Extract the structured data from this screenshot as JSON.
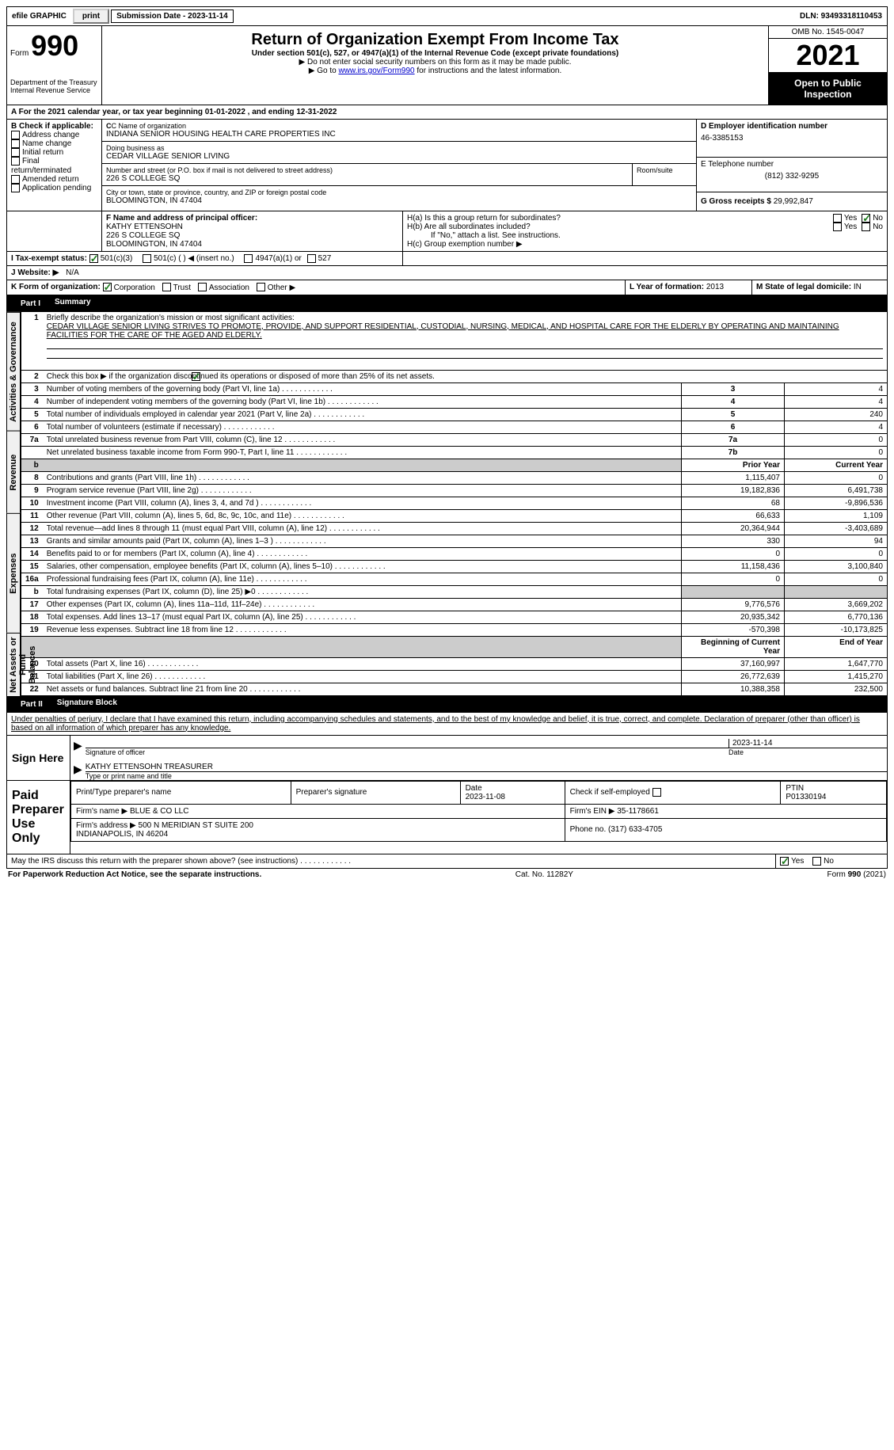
{
  "top": {
    "efile": "efile GRAPHIC",
    "print": "print",
    "submission": "Submission Date - 2023-11-14",
    "dln": "DLN: 93493318110453"
  },
  "header": {
    "form": "Form",
    "num": "990",
    "dept": "Department of the Treasury\nInternal Revenue Service",
    "title": "Return of Organization Exempt From Income Tax",
    "sub1": "Under section 501(c), 527, or 4947(a)(1) of the Internal Revenue Code (except private foundations)",
    "sub2": "▶ Do not enter social security numbers on this form as it may be made public.",
    "sub3": "▶ Go to ",
    "link": "www.irs.gov/Form990",
    "sub3b": " for instructions and the latest information.",
    "omb": "OMB No. 1545-0047",
    "year": "2021",
    "public": "Open to Public Inspection"
  },
  "a": {
    "line": "A For the 2021 calendar year, or tax year beginning 01-01-2022     , and ending 12-31-2022"
  },
  "b": {
    "label": "B Check if applicable:",
    "opts": [
      "Address change",
      "Name change",
      "Initial return",
      "Final return/terminated",
      "Amended return",
      "Application pending"
    ]
  },
  "c": {
    "label": "C Name of organization",
    "name": "INDIANA SENIOR HOUSING HEALTH CARE PROPERTIES INC",
    "dba_label": "Doing business as",
    "dba": "CEDAR VILLAGE SENIOR LIVING",
    "addr_label": "Number and street (or P.O. box if mail is not delivered to street address)",
    "room": "Room/suite",
    "addr": "226 S COLLEGE SQ",
    "city_label": "City or town, state or province, country, and ZIP or foreign postal code",
    "city": "BLOOMINGTON, IN  47404"
  },
  "d": {
    "label": "D Employer identification number",
    "val": "46-3385153"
  },
  "e": {
    "label": "E Telephone number",
    "val": "(812) 332-9295"
  },
  "g": {
    "label": "G Gross receipts $",
    "val": "29,992,847"
  },
  "f": {
    "label": "F Name and address of principal officer:",
    "name": "KATHY ETTENSOHN",
    "addr1": "226 S COLLEGE SQ",
    "addr2": "BLOOMINGTON, IN  47404"
  },
  "h": {
    "a": "H(a)  Is this a group return for subordinates?",
    "b": "H(b)  Are all subordinates included?",
    "note": "If \"No,\" attach a list. See instructions.",
    "c": "H(c)  Group exemption number ▶",
    "yes": "Yes",
    "no": "No"
  },
  "i": {
    "label": "I    Tax-exempt status:",
    "o1": "501(c)(3)",
    "o2": "501(c) (   ) ◀ (insert no.)",
    "o3": "4947(a)(1) or",
    "o4": "527"
  },
  "j": {
    "label": "J    Website: ▶",
    "val": "N/A"
  },
  "k": {
    "label": "K Form of organization:",
    "o1": "Corporation",
    "o2": "Trust",
    "o3": "Association",
    "o4": "Other ▶"
  },
  "l": {
    "label": "L Year of formation:",
    "val": "2013"
  },
  "m": {
    "label": "M State of legal domicile:",
    "val": "IN"
  },
  "part1": {
    "label": "Part I",
    "title": "Summary"
  },
  "summary": {
    "sections": {
      "s1": "Activities & Governance",
      "s2": "Revenue",
      "s3": "Expenses",
      "s4": "Net Assets or Fund Balances"
    },
    "line1": "Briefly describe the organization's mission or most significant activities:",
    "mission": "CEDAR VILLAGE SENIOR LIVING STRIVES TO PROMOTE, PROVIDE, AND SUPPORT RESIDENTIAL, CUSTODIAL, NURSING, MEDICAL, AND HOSPITAL CARE FOR THE ELDERLY BY OPERATING AND MAINTAINING FACILITIES FOR THE CARE OF THE AGED AND ELDERLY.",
    "line2": "Check this box ▶      if the organization discontinued its operations or disposed of more than 25% of its net assets.",
    "lines_top": [
      {
        "n": "3",
        "t": "Number of voting members of the governing body (Part VI, line 1a)",
        "box": "3",
        "v": "4"
      },
      {
        "n": "4",
        "t": "Number of independent voting members of the governing body (Part VI, line 1b)",
        "box": "4",
        "v": "4"
      },
      {
        "n": "5",
        "t": "Total number of individuals employed in calendar year 2021 (Part V, line 2a)",
        "box": "5",
        "v": "240"
      },
      {
        "n": "6",
        "t": "Total number of volunteers (estimate if necessary)",
        "box": "6",
        "v": "4"
      },
      {
        "n": "7a",
        "t": "Total unrelated business revenue from Part VIII, column (C), line 12",
        "box": "7a",
        "v": "0"
      },
      {
        "n": "",
        "t": "Net unrelated business taxable income from Form 990-T, Part I, line 11",
        "box": "7b",
        "v": "0"
      }
    ],
    "col_prior": "Prior Year",
    "col_current": "Current Year",
    "col_begin": "Beginning of Current Year",
    "col_end": "End of Year",
    "revenue": [
      {
        "n": "8",
        "t": "Contributions and grants (Part VIII, line 1h)",
        "p": "1,115,407",
        "c": "0"
      },
      {
        "n": "9",
        "t": "Program service revenue (Part VIII, line 2g)",
        "p": "19,182,836",
        "c": "6,491,738"
      },
      {
        "n": "10",
        "t": "Investment income (Part VIII, column (A), lines 3, 4, and 7d )",
        "p": "68",
        "c": "-9,896,536"
      },
      {
        "n": "11",
        "t": "Other revenue (Part VIII, column (A), lines 5, 6d, 8c, 9c, 10c, and 11e)",
        "p": "66,633",
        "c": "1,109"
      },
      {
        "n": "12",
        "t": "Total revenue—add lines 8 through 11 (must equal Part VIII, column (A), line 12)",
        "p": "20,364,944",
        "c": "-3,403,689"
      }
    ],
    "expenses": [
      {
        "n": "13",
        "t": "Grants and similar amounts paid (Part IX, column (A), lines 1–3 )",
        "p": "330",
        "c": "94"
      },
      {
        "n": "14",
        "t": "Benefits paid to or for members (Part IX, column (A), line 4)",
        "p": "0",
        "c": "0"
      },
      {
        "n": "15",
        "t": "Salaries, other compensation, employee benefits (Part IX, column (A), lines 5–10)",
        "p": "11,158,436",
        "c": "3,100,840"
      },
      {
        "n": "16a",
        "t": "Professional fundraising fees (Part IX, column (A), line 11e)",
        "p": "0",
        "c": "0"
      },
      {
        "n": "b",
        "t": "Total fundraising expenses (Part IX, column (D), line 25) ▶0",
        "p": "",
        "c": "",
        "grey": true
      },
      {
        "n": "17",
        "t": "Other expenses (Part IX, column (A), lines 11a–11d, 11f–24e)",
        "p": "9,776,576",
        "c": "3,669,202"
      },
      {
        "n": "18",
        "t": "Total expenses. Add lines 13–17 (must equal Part IX, column (A), line 25)",
        "p": "20,935,342",
        "c": "6,770,136"
      },
      {
        "n": "19",
        "t": "Revenue less expenses. Subtract line 18 from line 12",
        "p": "-570,398",
        "c": "-10,173,825"
      }
    ],
    "net": [
      {
        "n": "20",
        "t": "Total assets (Part X, line 16)",
        "p": "37,160,997",
        "c": "1,647,770"
      },
      {
        "n": "21",
        "t": "Total liabilities (Part X, line 26)",
        "p": "26,772,639",
        "c": "1,415,270"
      },
      {
        "n": "22",
        "t": "Net assets or fund balances. Subtract line 21 from line 20",
        "p": "10,388,358",
        "c": "232,500"
      }
    ]
  },
  "part2": {
    "label": "Part II",
    "title": "Signature Block"
  },
  "sig": {
    "penalty": "Under penalties of perjury, I declare that I have examined this return, including accompanying schedules and statements, and to the best of my knowledge and belief, it is true, correct, and complete. Declaration of preparer (other than officer) is based on all information of which preparer has any knowledge.",
    "sign_here": "Sign Here",
    "sig_officer": "Signature of officer",
    "date": "Date",
    "date_val": "2023-11-14",
    "name_title": "KATHY ETTENSOHN  TREASURER",
    "name_label": "Type or print name and title",
    "paid": "Paid Preparer Use Only",
    "prep_name": "Print/Type preparer's name",
    "prep_sig": "Preparer's signature",
    "prep_date": "Date\n2023-11-08",
    "check_self": "Check         if self-employed",
    "ptin": "PTIN\nP01330194",
    "firm_name_l": "Firm's name    ▶",
    "firm_name": "BLUE & CO LLC",
    "firm_ein_l": "Firm's EIN ▶",
    "firm_ein": "35-1178661",
    "firm_addr_l": "Firm's address ▶",
    "firm_addr": "500 N MERIDIAN ST SUITE 200\nINDIANAPOLIS, IN  46204",
    "phone_l": "Phone no.",
    "phone": "(317) 633-4705",
    "may_irs": "May the IRS discuss this return with the preparer shown above? (see instructions)"
  },
  "footer": {
    "left": "For Paperwork Reduction Act Notice, see the separate instructions.",
    "mid": "Cat. No. 11282Y",
    "right": "Form 990 (2021)"
  }
}
